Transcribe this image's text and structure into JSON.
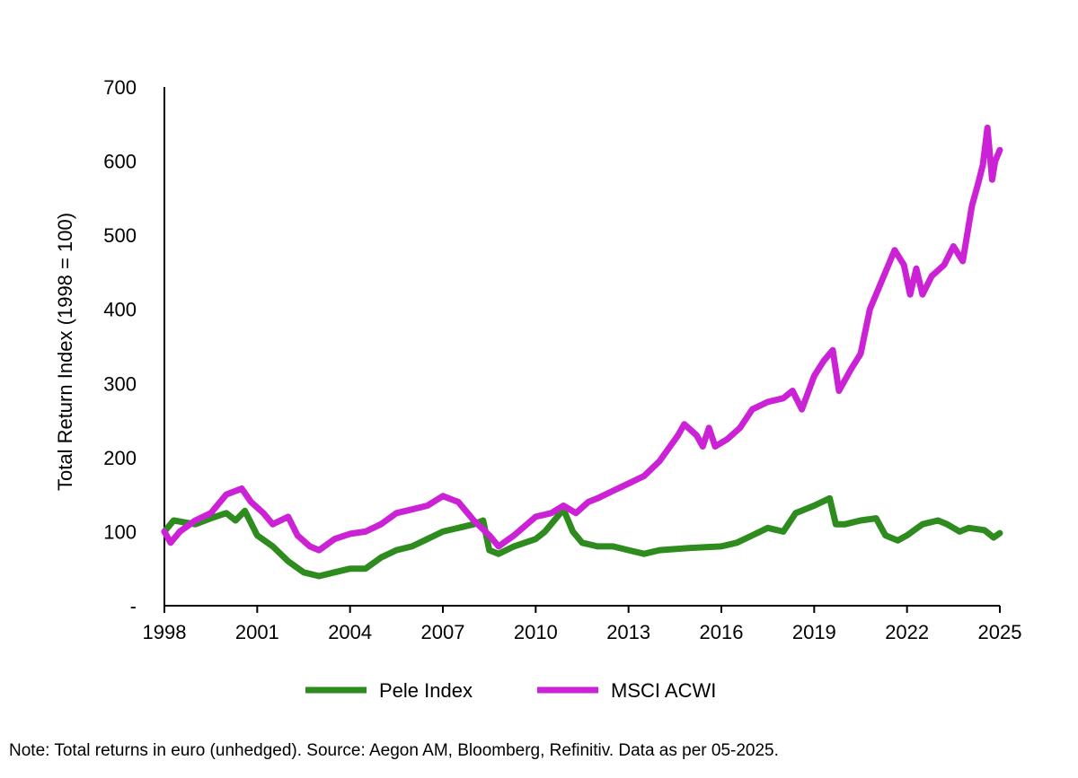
{
  "chart_data": {
    "type": "line",
    "title": "",
    "xlabel": "",
    "ylabel": "Total Return Index (1998 = 100)",
    "xlim": [
      1998,
      2025
    ],
    "ylim": [
      0,
      700
    ],
    "x_ticks": [
      "1998",
      "2001",
      "2004",
      "2007",
      "2010",
      "2013",
      "2016",
      "2019",
      "2022",
      "2025"
    ],
    "y_ticks": [
      "-",
      "100",
      "200",
      "300",
      "400",
      "500",
      "600",
      "700"
    ],
    "grid": false,
    "legend": "bottom",
    "series": [
      {
        "name": "Pele Index",
        "color": "#2e8b1e",
        "x": [
          1998,
          1998.3,
          1999,
          1999.5,
          2000,
          2000.3,
          2000.6,
          2001,
          2001.5,
          2002,
          2002.5,
          2003,
          2003.5,
          2004,
          2004.5,
          2005,
          2005.5,
          2006,
          2006.5,
          2007,
          2007.5,
          2008,
          2008.3,
          2008.5,
          2008.8,
          2009.3,
          2010,
          2010.3,
          2010.7,
          2010.9,
          2011.2,
          2011.5,
          2012,
          2012.5,
          2013,
          2013.5,
          2014,
          2015,
          2016,
          2016.5,
          2017,
          2017.5,
          2018,
          2018.4,
          2019,
          2019.5,
          2019.7,
          2020,
          2020.5,
          2021,
          2021.3,
          2021.7,
          2022,
          2022.5,
          2023,
          2023.3,
          2023.7,
          2024,
          2024.5,
          2024.8,
          2025
        ],
        "values": [
          100,
          115,
          110,
          118,
          125,
          115,
          128,
          95,
          80,
          60,
          45,
          40,
          45,
          50,
          50,
          65,
          75,
          80,
          90,
          100,
          105,
          110,
          115,
          75,
          70,
          80,
          90,
          100,
          120,
          130,
          100,
          85,
          80,
          80,
          75,
          70,
          75,
          78,
          80,
          85,
          95,
          105,
          100,
          125,
          135,
          145,
          110,
          110,
          115,
          118,
          95,
          88,
          95,
          110,
          115,
          110,
          100,
          105,
          102,
          92,
          98
        ]
      },
      {
        "name": "MSCI ACWI",
        "color": "#cc22d6",
        "x": [
          1998,
          1998.2,
          1998.5,
          1999,
          1999.5,
          2000,
          2000.5,
          2000.8,
          2001.2,
          2001.5,
          2002,
          2002.3,
          2002.7,
          2003,
          2003.5,
          2004,
          2004.5,
          2005,
          2005.5,
          2006,
          2006.5,
          2007,
          2007.5,
          2008,
          2008.5,
          2008.8,
          2009.3,
          2010,
          2010.5,
          2010.9,
          2011.3,
          2011.7,
          2012,
          2012.5,
          2013,
          2013.5,
          2014,
          2014.6,
          2014.8,
          2015.2,
          2015.4,
          2015.6,
          2015.8,
          2016.2,
          2016.6,
          2017,
          2017.5,
          2018,
          2018.3,
          2018.6,
          2019,
          2019.3,
          2019.6,
          2019.8,
          2020.2,
          2020.5,
          2020.8,
          2021.3,
          2021.6,
          2021.9,
          2022.1,
          2022.3,
          2022.5,
          2022.8,
          2023.2,
          2023.5,
          2023.8,
          2024.1,
          2024.3,
          2024.45,
          2024.6,
          2024.75,
          2024.85,
          2025
        ],
        "values": [
          100,
          85,
          100,
          115,
          125,
          150,
          158,
          140,
          125,
          110,
          120,
          95,
          80,
          75,
          90,
          97,
          100,
          110,
          125,
          130,
          135,
          148,
          140,
          115,
          95,
          80,
          95,
          120,
          125,
          135,
          125,
          140,
          145,
          155,
          165,
          175,
          195,
          230,
          245,
          230,
          215,
          240,
          215,
          225,
          240,
          265,
          275,
          280,
          290,
          265,
          310,
          330,
          345,
          290,
          320,
          340,
          400,
          450,
          480,
          460,
          420,
          455,
          420,
          445,
          460,
          485,
          465,
          540,
          570,
          595,
          645,
          575,
          600,
          615
        ]
      }
    ]
  },
  "note": "Note: Total returns in euro (unhedged). Source: Aegon AM, Bloomberg, Refinitiv. Data as per 05-2025."
}
